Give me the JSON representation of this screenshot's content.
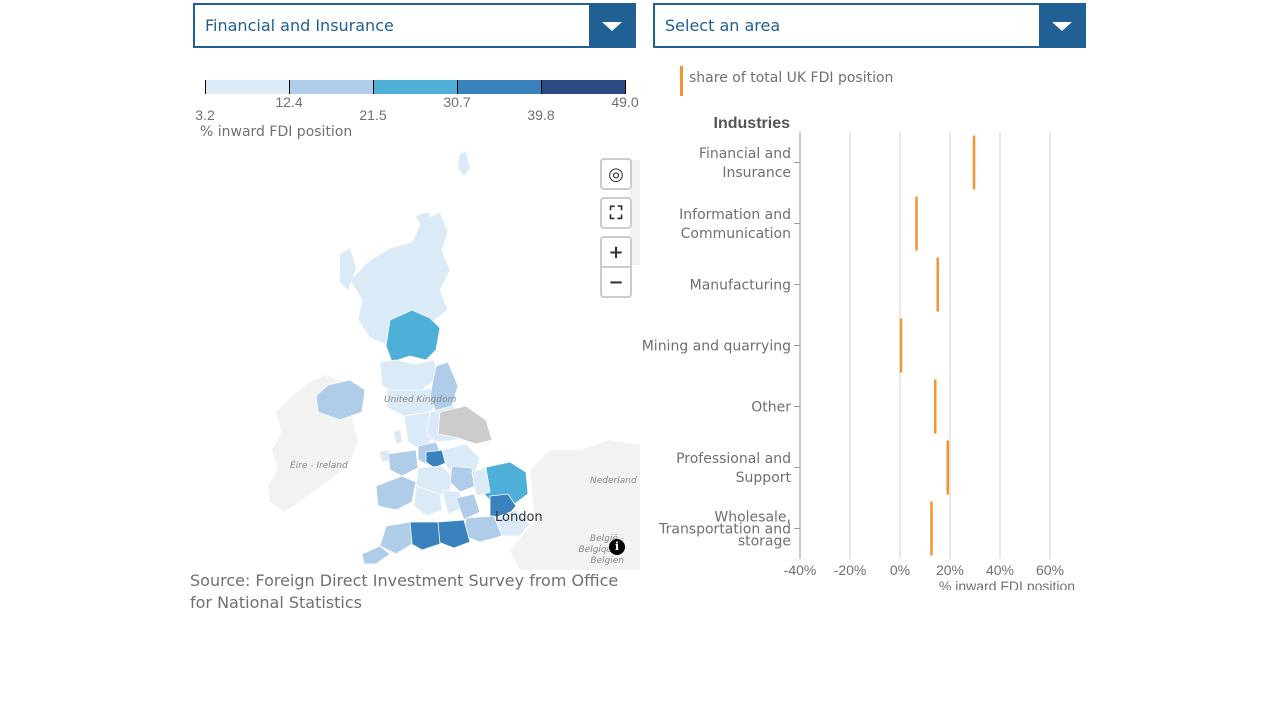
{
  "selectors": {
    "industry": {
      "value": "Financial and Insurance",
      "icon": "chevron-down-icon"
    },
    "area": {
      "value": "Select an area",
      "icon": "chevron-down-icon"
    }
  },
  "legend": {
    "breaks": [
      "3.2",
      "12.4",
      "21.5",
      "30.7",
      "39.8",
      "49.0"
    ],
    "colors": [
      "#dbeaf7",
      "#afcde8",
      "#4eb0d8",
      "#3a82be",
      "#2b4c82"
    ],
    "title": "% inward FDI position"
  },
  "map": {
    "controls": {
      "locate_icon": "crosshair-icon",
      "fullscreen_icon": "expand-icon",
      "zoom_in": "+",
      "zoom_out": "−"
    },
    "labels": {
      "ireland": "Éire - Ireland",
      "uk": "United Kingdom",
      "netherlands": "Nederland",
      "belgium": "België - Belgique - Belgien",
      "city": "London"
    },
    "info_icon": "i",
    "no_data_color": "#cccccc",
    "land_color": "#f2f2f0"
  },
  "source": "Source: Foreign Direct Investment Survey from Office for National Statistics",
  "key": {
    "label": "share of total UK FDI position",
    "color": "#f39431"
  },
  "chart_data": {
    "type": "scatter",
    "title": "",
    "y_title": "Industries",
    "categories": [
      [
        "Financial and",
        "Insurance"
      ],
      [
        "Information and",
        "Communication"
      ],
      [
        "Manufacturing"
      ],
      [
        "Mining and quarrying"
      ],
      [
        "Other"
      ],
      [
        "Professional and",
        "Support"
      ],
      [
        "Wholesale,",
        "Transportation and",
        "storage"
      ]
    ],
    "series": [
      {
        "name": "share of total UK FDI position",
        "values": [
          29.5,
          6.5,
          15,
          0.3,
          14,
          19,
          12.5
        ]
      }
    ],
    "x_ticks": [
      "-40%",
      "-20%",
      "0%",
      "20%",
      "40%",
      "60%"
    ],
    "x_tick_values": [
      -40,
      -20,
      0,
      20,
      40,
      60
    ],
    "xlim": [
      -40,
      60
    ],
    "xlabel": "% inward FDI position",
    "grid": true
  }
}
